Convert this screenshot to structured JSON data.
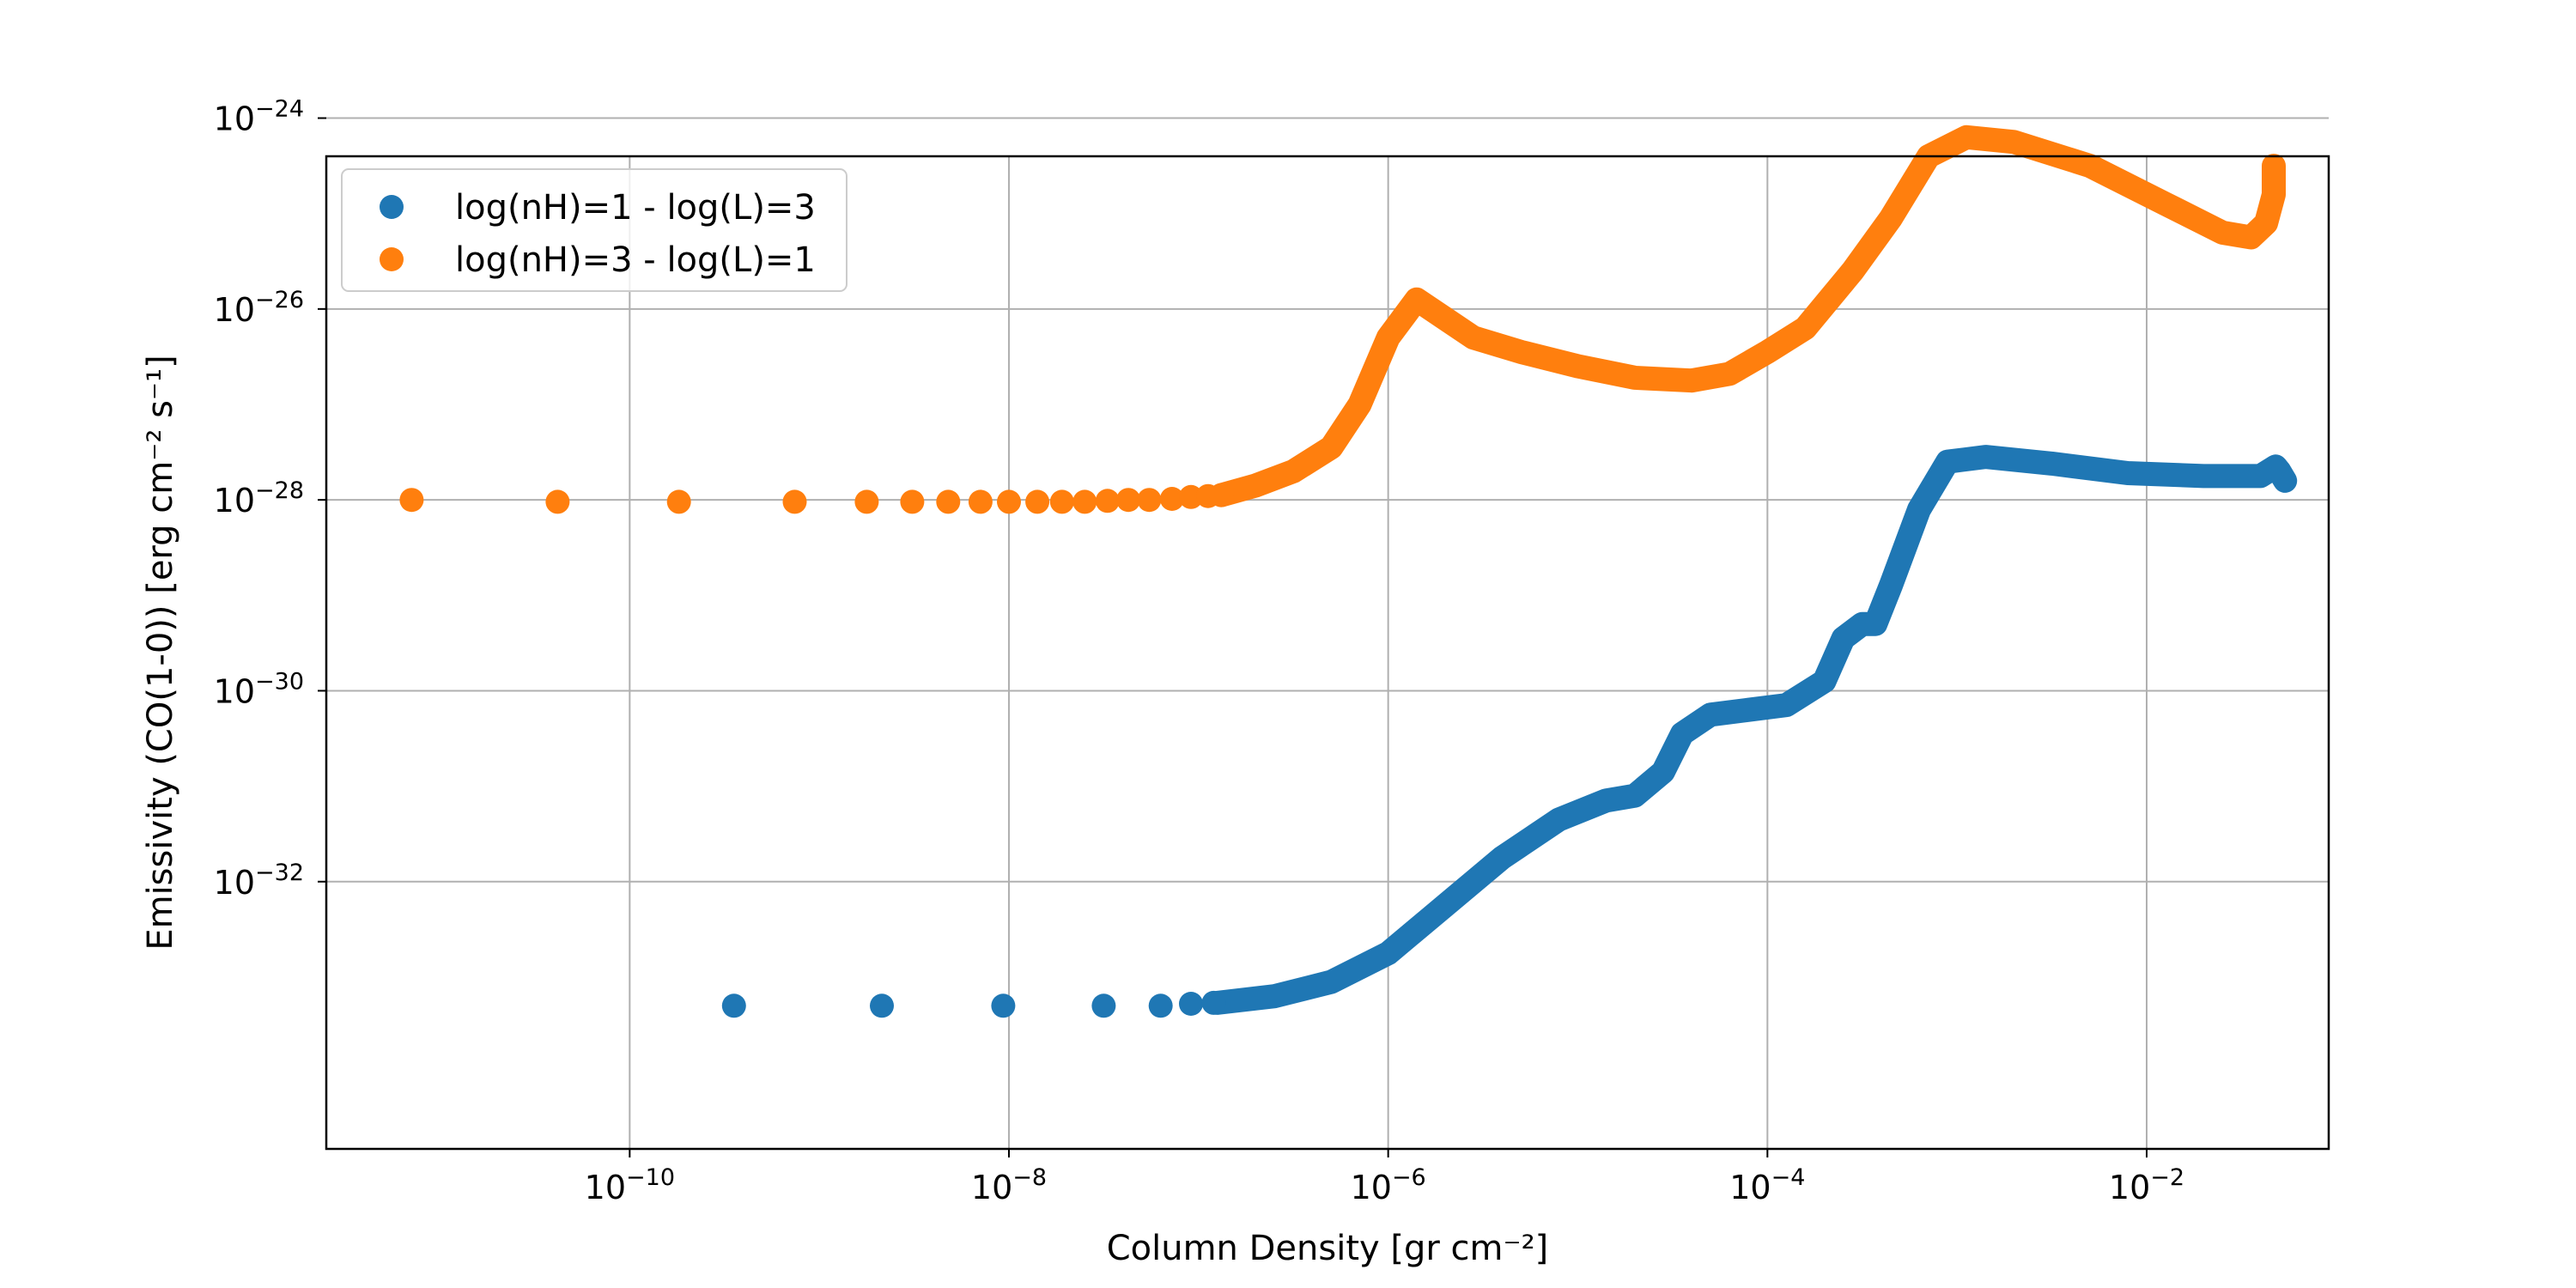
{
  "chart_data": {
    "type": "scatter",
    "x_scale": "log",
    "y_scale": "log",
    "xlabel": "Column Density [gr cm⁻²]",
    "ylabel": "Emissivity (CO(1-0)) [erg cm⁻² s⁻¹]",
    "xlim_log10": [
      -11.6,
      -1.04
    ],
    "ylim_log10": [
      -34.8,
      -24.4
    ],
    "x_ticks": [
      {
        "log": -10,
        "base": "10",
        "exp": "−10"
      },
      {
        "log": -8,
        "base": "10",
        "exp": "−8"
      },
      {
        "log": -6,
        "base": "10",
        "exp": "−6"
      },
      {
        "log": -4,
        "base": "10",
        "exp": "−4"
      },
      {
        "log": -2,
        "base": "10",
        "exp": "−2"
      }
    ],
    "y_ticks": [
      {
        "log": -32,
        "base": "10",
        "exp": "−32"
      },
      {
        "log": -30,
        "base": "10",
        "exp": "−30"
      },
      {
        "log": -28,
        "base": "10",
        "exp": "−28"
      },
      {
        "log": -26,
        "base": "10",
        "exp": "−26"
      },
      {
        "log": -24,
        "base": "10",
        "exp": "−24"
      }
    ],
    "grid": true,
    "legend_position": "top-left",
    "series": [
      {
        "name": "log(nH)=1 - log(L)=3",
        "color": "#1f77b4",
        "sparse_points_log10": [
          [
            -9.45,
            -33.3
          ],
          [
            -8.67,
            -33.3
          ],
          [
            -8.03,
            -33.3
          ],
          [
            -7.5,
            -33.3
          ],
          [
            -7.2,
            -33.3
          ],
          [
            -7.04,
            -33.28
          ],
          [
            -6.92,
            -33.27
          ]
        ],
        "curve_log10": [
          [
            -6.9,
            -33.27
          ],
          [
            -6.6,
            -33.2
          ],
          [
            -6.3,
            -33.05
          ],
          [
            -6.0,
            -32.75
          ],
          [
            -5.7,
            -32.25
          ],
          [
            -5.4,
            -31.75
          ],
          [
            -5.1,
            -31.35
          ],
          [
            -4.85,
            -31.15
          ],
          [
            -4.7,
            -31.1
          ],
          [
            -4.55,
            -30.85
          ],
          [
            -4.45,
            -30.45
          ],
          [
            -4.3,
            -30.25
          ],
          [
            -4.1,
            -30.2
          ],
          [
            -3.9,
            -30.15
          ],
          [
            -3.7,
            -29.9
          ],
          [
            -3.6,
            -29.45
          ],
          [
            -3.5,
            -29.3
          ],
          [
            -3.43,
            -29.3
          ],
          [
            -3.35,
            -28.9
          ],
          [
            -3.2,
            -28.1
          ],
          [
            -3.05,
            -27.6
          ],
          [
            -2.85,
            -27.55
          ],
          [
            -2.5,
            -27.62
          ],
          [
            -2.1,
            -27.72
          ],
          [
            -1.7,
            -27.75
          ],
          [
            -1.4,
            -27.75
          ],
          [
            -1.32,
            -27.65
          ],
          [
            -1.3,
            -27.7
          ],
          [
            -1.27,
            -27.8
          ]
        ]
      },
      {
        "name": "log(nH)=3 - log(L)=1",
        "color": "#ff7f0e",
        "sparse_points_log10": [
          [
            -11.15,
            -28.0
          ],
          [
            -10.38,
            -28.02
          ],
          [
            -9.74,
            -28.02
          ],
          [
            -9.13,
            -28.02
          ],
          [
            -8.75,
            -28.02
          ],
          [
            -8.51,
            -28.02
          ],
          [
            -8.32,
            -28.02
          ],
          [
            -8.15,
            -28.02
          ],
          [
            -8.0,
            -28.02
          ],
          [
            -7.85,
            -28.02
          ],
          [
            -7.72,
            -28.02
          ],
          [
            -7.6,
            -28.02
          ],
          [
            -7.48,
            -28.01
          ],
          [
            -7.37,
            -28.0
          ],
          [
            -7.26,
            -28.0
          ],
          [
            -7.14,
            -27.99
          ],
          [
            -7.04,
            -27.97
          ],
          [
            -6.95,
            -27.96
          ],
          [
            -6.88,
            -27.95
          ]
        ],
        "curve_log10": [
          [
            -6.88,
            -27.95
          ],
          [
            -6.7,
            -27.85
          ],
          [
            -6.5,
            -27.7
          ],
          [
            -6.3,
            -27.45
          ],
          [
            -6.15,
            -27.0
          ],
          [
            -6.0,
            -26.3
          ],
          [
            -5.85,
            -25.9
          ],
          [
            -5.7,
            -26.1
          ],
          [
            -5.55,
            -26.3
          ],
          [
            -5.3,
            -26.45
          ],
          [
            -5.0,
            -26.6
          ],
          [
            -4.7,
            -26.72
          ],
          [
            -4.4,
            -26.75
          ],
          [
            -4.2,
            -26.68
          ],
          [
            -4.0,
            -26.45
          ],
          [
            -3.8,
            -26.2
          ],
          [
            -3.55,
            -25.6
          ],
          [
            -3.35,
            -25.05
          ],
          [
            -3.15,
            -24.4
          ],
          [
            -2.95,
            -24.2
          ],
          [
            -2.7,
            -24.25
          ],
          [
            -2.3,
            -24.5
          ],
          [
            -1.9,
            -24.9
          ],
          [
            -1.6,
            -25.2
          ],
          [
            -1.45,
            -25.25
          ],
          [
            -1.37,
            -25.1
          ],
          [
            -1.33,
            -24.8
          ],
          [
            -1.33,
            -24.5
          ]
        ]
      }
    ]
  }
}
